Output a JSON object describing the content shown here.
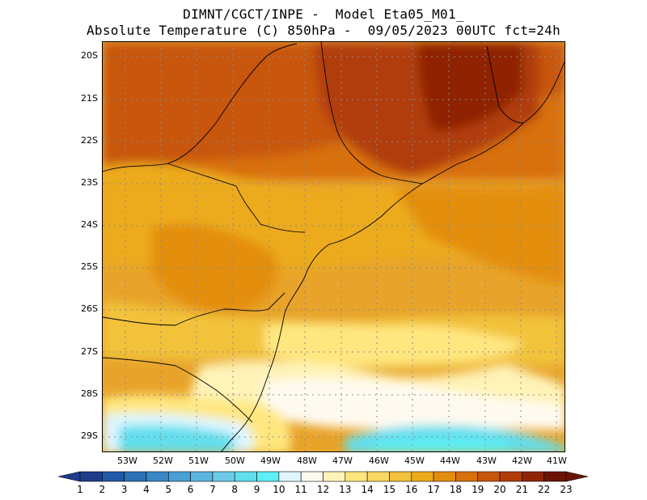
{
  "header": {
    "line1": "DIMNT/CGCT/INPE -  Model Eta05_M01_",
    "line2": "Absolute Temperature (C) 850hPa -  09/05/2023 00UTC fct=24h"
  },
  "map": {
    "variable": "Absolute Temperature",
    "units": "C",
    "level": "850hPa",
    "lat_ticks": [
      "20S",
      "21S",
      "22S",
      "23S",
      "24S",
      "25S",
      "26S",
      "27S",
      "28S",
      "29S"
    ],
    "lon_ticks": [
      "53W",
      "52W",
      "51W",
      "50W",
      "49W",
      "48W",
      "47W",
      "46W",
      "45W",
      "44W",
      "43W",
      "42W",
      "41W"
    ],
    "gridlines": true
  },
  "colorbar": {
    "labels": [
      "1",
      "2",
      "3",
      "4",
      "5",
      "6",
      "7",
      "8",
      "9",
      "10",
      "11",
      "12",
      "13",
      "14",
      "15",
      "16",
      "17",
      "18",
      "19",
      "20",
      "21",
      "22",
      "23"
    ],
    "colors": [
      "#1f3d8a",
      "#2159a8",
      "#2b72b9",
      "#3a88c7",
      "#4a9fd4",
      "#5bb6df",
      "#6ccbe8",
      "#62dfee",
      "#5cf0f5",
      "#dff6ff",
      "#fffaf0",
      "#fff3b8",
      "#ffe780",
      "#f8d862",
      "#f2c23a",
      "#ecab1c",
      "#e48e0e",
      "#d8700c",
      "#c8560a",
      "#b13c07",
      "#8f2405",
      "#6b1404"
    ]
  }
}
